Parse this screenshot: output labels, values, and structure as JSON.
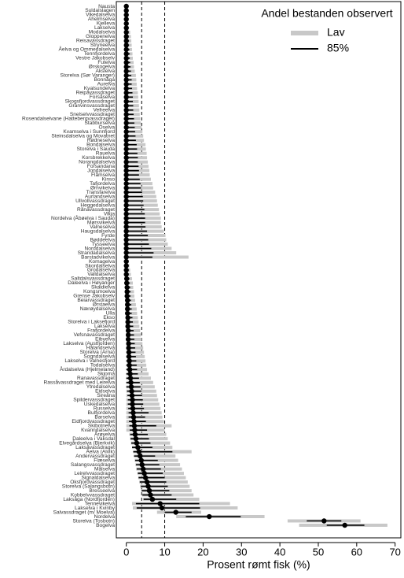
{
  "chart_data": {
    "type": "dot",
    "legend_title": "Andel bestanden observert",
    "legend": "top-right",
    "x_label": "Prosent rømt fisk (%)",
    "xlim": [
      -2.6,
      71.5
    ],
    "xticks": [
      0,
      10,
      20,
      30,
      40,
      50,
      60,
      70
    ],
    "reference_lines": [
      4,
      10
    ],
    "point_color": "#000000",
    "categories": [
      "Nausta",
      "Suldalslagen",
      "Vikedalselva",
      "Ahelmselva",
      "Kjelleva",
      "Lakselva",
      "Modalselva",
      "Gloppenelva",
      "Reisavassdraget",
      "Stryneelva",
      "Åelva og Ommedalselva",
      "Tennfjordelva",
      "Vestre Jakobselv",
      "Futelva",
      "Ørskogelva",
      "Akslelva",
      "Storelva (Sør Varanger)",
      "Bonnåga",
      "Aurelva",
      "Kvalsundelva",
      "Reipåvassdraget",
      "Forsåselva",
      "Skogsfjordvassdraget",
      "Granvinsvassdraget",
      "Vefreelva",
      "Snelselvvassdraget",
      "Rosendalselvane (Hattebergvassdraget)",
      "Stabburselva",
      "Oselva",
      "Kvamselva i Sunnfjord",
      "Steinsdalselva og Movatnet",
      "Rødneselva",
      "Bondalselva",
      "Storelva i Sauda",
      "Rauelva",
      "Korsbrekkelva",
      "Norangdalselva",
      "Forsandana",
      "Jondalselva",
      "Flåmselva",
      "Kinso",
      "Tafjordelva",
      "Ørnvikelva",
      "Transfarelva",
      "Aurlandselva",
      "Ullvollvassdraget",
      "Heggedalselva",
      "Rånavassdraget",
      "Vikja",
      "Nordelva (Åbøelva i Sauda)",
      "Mørsvikelva",
      "Valneselva",
      "Haugsdalselva",
      "Fyrde",
      "Bøddeelva",
      "Tysseelva",
      "Norddalselva",
      "Strandadalselva",
      "Barstadvikelva",
      "Komagelva",
      "Skordalselva",
      "Grodalselva",
      "Valldalselva",
      "Saltdalsvassdraget",
      "Daleelva i Høyanger",
      "Skaidielva",
      "Kongsmoelva",
      "Grense Jakobselv",
      "Beiarvassdraget",
      "Ørstaelva",
      "Nærøydalselva",
      "Ulla",
      "Ekso",
      "Storelva i Laksefjord",
      "Lakselva",
      "Frafjordelva",
      "Vefsnavassdraget",
      "Eibyelva",
      "Lakselva (Austfjorden)",
      "Hålandselva",
      "Storelva (Arna)",
      "Sogndalselva",
      "Lakselva i Valnesfjord",
      "Todalselva",
      "Årdalselva (Hjelmeland)",
      "Skjoma",
      "Ranavassdraget",
      "Rassåvassdraget med Leirelva",
      "Ytredalselva",
      "Eidselva",
      "Sireåna",
      "Spildervassdraget",
      "Uskedalselva",
      "Russelva",
      "Bulfjordelva",
      "Barselva",
      "Eidfjordvassdraget",
      "Skibotnelva",
      "Kvanndalselva",
      "Årøyelva",
      "Daleelva i Vaksdal",
      "Elvegårdselva (Bjerkvik)",
      "Laksåvassdraget",
      "Åelva (Alvik)",
      "Andervassdraget",
      "Flæselva",
      "Salangsvassdraget",
      "Målselva",
      "Leirelvvassdraget",
      "Signaldalselva",
      "Oksfjordvassdraget",
      "Storelva (Salangsbotn)",
      "Bresseelva",
      "Kobbelvvassdraget",
      "Laksåga (Nordfjorden)",
      "Tennevikelva",
      "Lakselva i Kvinby",
      "Salvassdraget (m/ Moelva)",
      "Nordelva",
      "Storelva (Tosbotn)",
      "Bogelva"
    ],
    "values": [
      0,
      0,
      0,
      0,
      0,
      0,
      0,
      0,
      0,
      0,
      0,
      0,
      0,
      0,
      0,
      0,
      0,
      0,
      0,
      0,
      0,
      0,
      0,
      0,
      0,
      0,
      0,
      0,
      0,
      0,
      0,
      0,
      0,
      0,
      0,
      0,
      0,
      0,
      0,
      0,
      0,
      0,
      0,
      0,
      0,
      0,
      0,
      0,
      0,
      0,
      0,
      0,
      0,
      0,
      0,
      0,
      0,
      0,
      0,
      0,
      0,
      0,
      0,
      0.1,
      0.1,
      0.2,
      0.2,
      0.2,
      0.3,
      0.3,
      0.3,
      0.3,
      0.4,
      0.4,
      0.4,
      0.5,
      0.5,
      0.5,
      0.6,
      0.6,
      0.7,
      0.7,
      0.8,
      0.8,
      0.9,
      1.0,
      1.1,
      1.2,
      1.3,
      1.4,
      1.5,
      1.6,
      1.6,
      1.7,
      1.8,
      1.9,
      2.0,
      2.1,
      2.2,
      2.3,
      2.5,
      2.7,
      3.0,
      3.3,
      3.6,
      3.9,
      4.1,
      4.4,
      4.7,
      5.0,
      5.4,
      5.7,
      6.0,
      6.3,
      6.8,
      8.8,
      9.3,
      12.9,
      21.6,
      51.5,
      56.9
    ],
    "series": [
      {
        "name": "Lav",
        "color": "#c8c8c8",
        "low": [
          0,
          0,
          0,
          0,
          0,
          0,
          0,
          0,
          0,
          0,
          0,
          0,
          0,
          0,
          0,
          0,
          0,
          0,
          0,
          0,
          0,
          0,
          0,
          0,
          0,
          0,
          0,
          0,
          0,
          0,
          0,
          0,
          0,
          0,
          0,
          0,
          0,
          0,
          0,
          0,
          0,
          0,
          0,
          0,
          0,
          0,
          0,
          0,
          0,
          0,
          0,
          0,
          0,
          0,
          0,
          0,
          0,
          0,
          0,
          0,
          0,
          0,
          0,
          0,
          0,
          0,
          0,
          0,
          0,
          0,
          0,
          0,
          0,
          0,
          0,
          0,
          0,
          0,
          0,
          0,
          0,
          0,
          0,
          0,
          0,
          0,
          0,
          0,
          0,
          0,
          0,
          0,
          0,
          0,
          0,
          0,
          0,
          0,
          0,
          0.8,
          1.0,
          1.2,
          1.5,
          1.8,
          2.0,
          2.2,
          2.4,
          2.6,
          2.9,
          3.1,
          3.4,
          3.6,
          3.9,
          4.1,
          4.4,
          1.5,
          1.7,
          8.0,
          13.0,
          42.0,
          45.0
        ],
        "high": [
          0.4,
          0.4,
          0.5,
          0.6,
          0.6,
          0.7,
          1.0,
          1.2,
          1.3,
          1.4,
          1.5,
          1.6,
          1.7,
          1.9,
          2.0,
          2.2,
          2.5,
          2.6,
          2.7,
          2.8,
          3.0,
          3.1,
          3.2,
          3.3,
          3.4,
          3.5,
          3.6,
          3.8,
          4.0,
          4.2,
          4.4,
          4.6,
          5.0,
          5.1,
          5.3,
          5.4,
          5.6,
          5.8,
          6.0,
          6.1,
          6.4,
          6.8,
          7.0,
          7.5,
          7.8,
          8.0,
          8.2,
          8.5,
          8.7,
          9.0,
          9.0,
          9.2,
          9.8,
          10.2,
          10.4,
          10.8,
          11.8,
          13.0,
          16.2,
          0.6,
          0.8,
          1.0,
          1.2,
          1.5,
          1.7,
          1.8,
          2.0,
          2.1,
          2.3,
          2.5,
          2.7,
          2.8,
          3.0,
          3.2,
          3.4,
          3.6,
          3.8,
          4.0,
          4.2,
          4.4,
          4.6,
          4.8,
          5.0,
          5.2,
          5.4,
          5.8,
          6.4,
          7.0,
          7.4,
          7.8,
          8.0,
          8.3,
          8.6,
          8.9,
          9.2,
          9.4,
          9.8,
          11.8,
          10.0,
          10.4,
          10.8,
          11.4,
          12.0,
          17.0,
          12.8,
          13.5,
          14.0,
          14.5,
          15.0,
          15.5,
          16.0,
          16.5,
          17.0,
          17.5,
          19.0,
          27.0,
          29.0,
          19.5,
          36.0,
          61.0,
          68.0
        ]
      },
      {
        "name": "85%",
        "color": "#000000",
        "low": [
          0,
          0,
          0,
          0,
          0,
          0,
          0,
          0,
          0,
          0,
          0,
          0,
          0,
          0,
          0,
          0,
          0,
          0,
          0,
          0,
          0,
          0,
          0,
          0,
          0,
          0,
          0,
          0,
          0,
          0,
          0,
          0,
          0,
          0,
          0,
          0,
          0,
          0,
          0,
          0,
          0,
          0,
          0,
          0,
          0,
          0,
          0,
          0,
          0,
          0,
          0,
          0,
          0,
          0,
          0,
          0,
          0,
          0,
          0,
          0,
          0,
          0,
          0,
          0,
          0,
          0,
          0,
          0,
          0,
          0,
          0,
          0,
          0,
          0,
          0,
          0,
          0,
          0,
          0,
          0,
          0,
          0,
          0,
          0,
          0,
          0,
          0,
          0,
          0,
          0.2,
          0.3,
          0.4,
          0.4,
          0.5,
          0.6,
          0.6,
          0.7,
          0.8,
          0.9,
          1.0,
          1.1,
          1.3,
          1.5,
          1.8,
          2.0,
          2.3,
          2.5,
          2.7,
          3.0,
          3.2,
          3.5,
          3.8,
          4.0,
          4.2,
          4.5,
          2.5,
          2.7,
          10.0,
          15.5,
          47.0,
          52.2
        ],
        "high": [
          0.2,
          0.2,
          0.3,
          0.3,
          0.3,
          0.4,
          0.5,
          0.6,
          0.7,
          0.7,
          0.8,
          0.9,
          0.9,
          1.0,
          1.1,
          1.2,
          1.3,
          1.4,
          1.4,
          1.5,
          1.6,
          1.7,
          1.7,
          1.8,
          1.8,
          1.9,
          2.0,
          2.1,
          2.2,
          2.3,
          2.4,
          2.5,
          2.7,
          2.8,
          2.9,
          3.0,
          3.0,
          3.2,
          3.3,
          3.3,
          3.5,
          3.7,
          3.8,
          4.1,
          4.3,
          4.4,
          4.5,
          4.7,
          4.8,
          4.9,
          4.9,
          5.0,
          5.4,
          5.6,
          5.7,
          5.9,
          6.5,
          7.1,
          6.8,
          0.3,
          0.4,
          0.5,
          0.6,
          0.8,
          0.9,
          1.0,
          1.1,
          1.1,
          1.2,
          1.3,
          1.4,
          1.4,
          1.6,
          1.7,
          1.8,
          1.9,
          2.0,
          2.1,
          2.2,
          2.3,
          2.4,
          2.5,
          2.6,
          2.7,
          2.8,
          3.0,
          3.3,
          3.5,
          3.7,
          3.9,
          4.1,
          4.3,
          4.4,
          4.6,
          5.8,
          4.9,
          5.1,
          7.8,
          5.4,
          5.6,
          5.9,
          6.3,
          6.8,
          12.0,
          7.5,
          8.2,
          8.6,
          9.0,
          9.5,
          10.0,
          10.4,
          10.8,
          11.2,
          11.8,
          13.0,
          19.0,
          19.2,
          17.0,
          29.8,
          56.0,
          62.0
        ]
      }
    ]
  }
}
